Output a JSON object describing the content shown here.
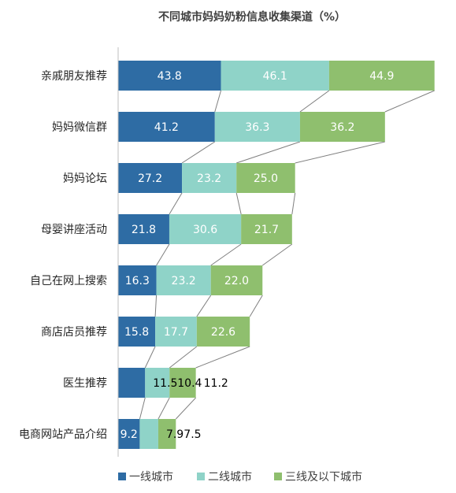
{
  "chart_data": {
    "type": "bar",
    "orientation": "horizontal",
    "stacked": true,
    "title": "不同城市妈妈奶粉信息收集渠道（%）",
    "categories": [
      "亲戚朋友推荐",
      "妈妈微信群",
      "妈妈论坛",
      "母婴讲座活动",
      "自己在网上搜索",
      "商店店员推荐",
      "医生推荐",
      "电商网站产品介绍"
    ],
    "series": [
      {
        "name": "一线城市",
        "values": [
          43.8,
          41.2,
          27.2,
          21.8,
          16.3,
          15.8,
          11.5,
          9.2
        ],
        "color": "#2e6ca4"
      },
      {
        "name": "二线城市",
        "values": [
          46.1,
          36.3,
          23.2,
          30.6,
          23.2,
          17.7,
          10.4,
          7.9
        ],
        "color": "#8fd3c8"
      },
      {
        "name": "三线及以下城市",
        "values": [
          44.9,
          36.2,
          25.0,
          21.7,
          22.0,
          22.6,
          11.2,
          7.5
        ],
        "color": "#8fbf6e"
      }
    ],
    "legend_position": "bottom",
    "grid": false,
    "connector_lines": true,
    "axis_color": "#bfbfbf",
    "connector_color": "#7f7f7f"
  }
}
